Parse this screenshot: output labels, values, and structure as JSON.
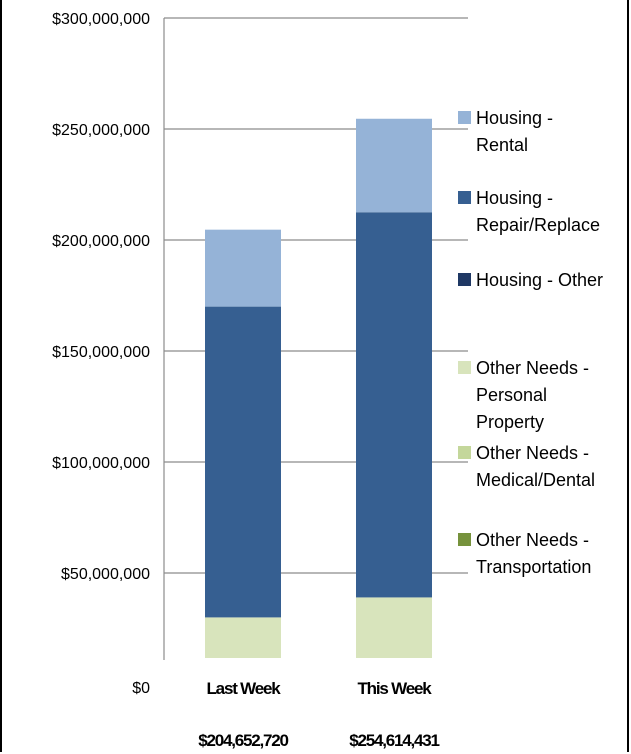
{
  "chart_data": {
    "type": "bar",
    "stacked": true,
    "categories": [
      "Last Week",
      "This Week"
    ],
    "totals": [
      "$204,652,720",
      "$254,614,431"
    ],
    "series": [
      {
        "name": "Other Needs - Transportation",
        "legend_lines": [
          "Other Needs -",
          "Transportation"
        ],
        "color": "#76923C",
        "values": [
          0,
          0
        ]
      },
      {
        "name": "Other Needs - Medical/Dental",
        "legend_lines": [
          "Other Needs -",
          "Medical/Dental"
        ],
        "color": "#C4D79B",
        "values": [
          0,
          0
        ]
      },
      {
        "name": "Other Needs - Personal Property",
        "legend_lines": [
          "Other Needs -",
          "Personal",
          "Property"
        ],
        "color": "#D8E4BC",
        "values": [
          30000000,
          39000000
        ]
      },
      {
        "name": "Housing - Other",
        "legend_lines": [
          "Housing - Other"
        ],
        "color": "#1F3864",
        "values": [
          0,
          0
        ]
      },
      {
        "name": "Housing - Repair/Replace",
        "legend_lines": [
          "Housing -",
          "Repair/Replace"
        ],
        "color": "#365F91",
        "values": [
          140000000,
          173500000
        ]
      },
      {
        "name": "Housing - Rental",
        "legend_lines": [
          "Housing -",
          "Rental"
        ],
        "color": "#95B3D7",
        "values": [
          34652720,
          42114431
        ]
      }
    ],
    "legend_order": [
      5,
      4,
      3,
      2,
      1,
      0
    ],
    "yticks": [
      "$0",
      "$50,000,000",
      "$100,000,000",
      "$150,000,000",
      "$200,000,000",
      "$250,000,000",
      "$300,000,000"
    ],
    "ylim": [
      0,
      300000000
    ],
    "grid": true,
    "legend_position": "right",
    "title": "",
    "xlabel": "",
    "ylabel": ""
  }
}
